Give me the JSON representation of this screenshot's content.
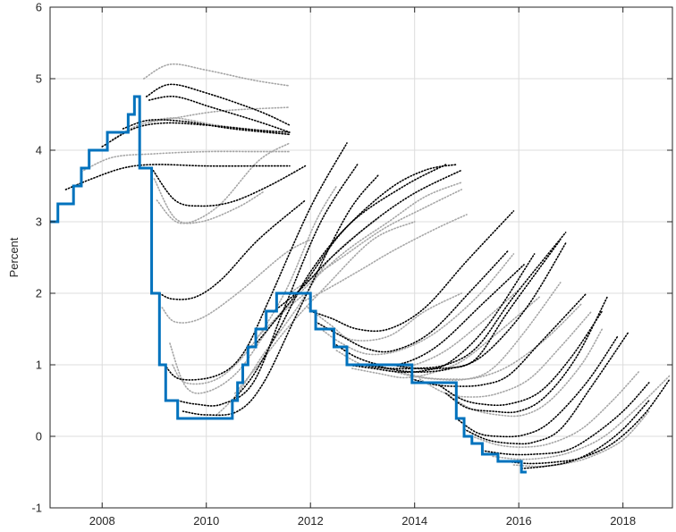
{
  "chart_data": {
    "type": "line",
    "title": "",
    "xlabel": "",
    "ylabel": "Percent",
    "xlim": [
      2007.0,
      2018.95
    ],
    "ylim": [
      -1,
      6
    ],
    "x_ticks": [
      2008,
      2010,
      2012,
      2014,
      2016,
      2018
    ],
    "x_tick_labels": [
      "2008",
      "2010",
      "2012",
      "2014",
      "2016",
      "2018"
    ],
    "y_ticks": [
      -1,
      0,
      1,
      2,
      3,
      4,
      5,
      6
    ],
    "y_tick_labels": [
      "-1",
      "0",
      "1",
      "2",
      "3",
      "4",
      "5",
      "6"
    ],
    "grid": true,
    "colors": {
      "policy": "#0072BD",
      "forecast_dark": "#000000",
      "forecast_light": "#a6a6a6",
      "grid": "#dcdcdc",
      "axis": "#262626"
    },
    "policy_rate": {
      "style": "step",
      "x": [
        2007.0,
        2007.15,
        2007.45,
        2007.6,
        2007.75,
        2007.9,
        2008.1,
        2008.3,
        2008.5,
        2008.62,
        2008.72,
        2008.85,
        2008.95,
        2009.1,
        2009.22,
        2009.33,
        2009.45,
        2010.5,
        2010.6,
        2010.7,
        2010.8,
        2010.95,
        2011.05,
        2011.15,
        2011.25,
        2011.35,
        2011.45,
        2011.55,
        2011.65,
        2011.8,
        2012.0,
        2012.1,
        2012.2,
        2012.45,
        2012.7,
        2012.9,
        2013.5,
        2013.95,
        2014.5,
        2014.8,
        2014.95,
        2015.1,
        2015.2,
        2015.3,
        2015.45,
        2015.6,
        2015.75,
        2016.05,
        2016.15
      ],
      "y": [
        3.0,
        3.25,
        3.5,
        3.75,
        4.0,
        4.0,
        4.25,
        4.25,
        4.5,
        4.75,
        3.75,
        3.75,
        2.0,
        1.0,
        0.5,
        0.5,
        0.25,
        0.5,
        0.75,
        1.0,
        1.25,
        1.5,
        1.5,
        1.75,
        1.75,
        2.0,
        2.0,
        2.0,
        2.0,
        2.0,
        1.75,
        1.5,
        1.5,
        1.25,
        1.0,
        1.0,
        1.0,
        0.75,
        0.75,
        0.25,
        0.0,
        -0.1,
        -0.1,
        -0.25,
        -0.25,
        -0.35,
        -0.35,
        -0.5,
        -0.5
      ]
    },
    "forecast_paths": [
      {
        "shade": "dark",
        "x": [
          2007.3,
          2007.8,
          2008.4,
          2009.0,
          2010.0,
          2011.0,
          2011.6
        ],
        "y": [
          3.45,
          3.6,
          3.75,
          3.8,
          3.78,
          3.78,
          3.78
        ]
      },
      {
        "shade": "light",
        "x": [
          2007.6,
          2008.2,
          2009.0,
          2010.0,
          2011.0,
          2011.6
        ],
        "y": [
          3.7,
          3.9,
          3.95,
          3.98,
          3.98,
          3.98
        ]
      },
      {
        "shade": "dark",
        "x": [
          2008.0,
          2008.6,
          2009.2,
          2010.0,
          2011.0,
          2011.6
        ],
        "y": [
          4.05,
          4.3,
          4.38,
          4.35,
          4.28,
          4.25
        ]
      },
      {
        "shade": "light",
        "x": [
          2008.2,
          2008.7,
          2009.4,
          2010.3,
          2011.6
        ],
        "y": [
          4.15,
          4.35,
          4.45,
          4.55,
          4.6
        ]
      },
      {
        "shade": "dark",
        "x": [
          2008.4,
          2008.9,
          2009.6,
          2010.5,
          2011.6
        ],
        "y": [
          4.3,
          4.42,
          4.4,
          4.3,
          4.22
        ]
      },
      {
        "shade": "light",
        "x": [
          2008.8,
          2009.3,
          2010.0,
          2010.9,
          2011.6
        ],
        "y": [
          5.0,
          5.2,
          5.12,
          4.98,
          4.9
        ]
      },
      {
        "shade": "dark",
        "x": [
          2008.85,
          2009.3,
          2010.0,
          2011.0,
          2011.6
        ],
        "y": [
          4.75,
          4.92,
          4.8,
          4.55,
          4.35
        ]
      },
      {
        "shade": "dark",
        "x": [
          2008.9,
          2009.4,
          2010.1,
          2011.0,
          2011.6
        ],
        "y": [
          4.7,
          4.75,
          4.6,
          4.4,
          4.25
        ]
      },
      {
        "shade": "light",
        "x": [
          2008.9,
          2009.4,
          2010.2,
          2011.0,
          2011.6
        ],
        "y": [
          4.4,
          4.45,
          4.35,
          4.28,
          4.22
        ]
      },
      {
        "shade": "dark",
        "x": [
          2008.95,
          2009.4,
          2009.9,
          2010.5,
          2011.2,
          2011.9
        ],
        "y": [
          3.75,
          3.3,
          3.22,
          3.28,
          3.5,
          3.78
        ]
      },
      {
        "shade": "light",
        "x": [
          2009.0,
          2009.4,
          2009.9,
          2010.6,
          2011.1
        ],
        "y": [
          3.6,
          3.05,
          3.0,
          3.2,
          3.42
        ]
      },
      {
        "shade": "light",
        "x": [
          2009.05,
          2009.5,
          2010.2,
          2011.0,
          2011.6
        ],
        "y": [
          3.3,
          2.98,
          3.2,
          3.85,
          4.1
        ]
      },
      {
        "shade": "dark",
        "x": [
          2009.1,
          2009.35,
          2009.8,
          2010.3,
          2011.0,
          2011.9
        ],
        "y": [
          2.0,
          1.92,
          1.95,
          2.2,
          2.75,
          3.3
        ]
      },
      {
        "shade": "light",
        "x": [
          2009.15,
          2009.4,
          2009.9,
          2010.6,
          2011.5,
          2012.0
        ],
        "y": [
          1.8,
          1.6,
          1.65,
          2.0,
          2.55,
          2.75
        ]
      },
      {
        "shade": "light",
        "x": [
          2009.3,
          2009.6,
          2010.0,
          2010.6,
          2011.3,
          2011.9
        ],
        "y": [
          1.3,
          0.7,
          0.62,
          0.9,
          1.6,
          2.0
        ]
      },
      {
        "shade": "dark",
        "x": [
          2009.2,
          2009.5,
          2010.2,
          2010.7,
          2011.2,
          2012.0,
          2012.7
        ],
        "y": [
          1.0,
          0.8,
          0.85,
          1.15,
          1.9,
          3.2,
          4.1
        ]
      },
      {
        "shade": "light",
        "x": [
          2009.35,
          2009.6,
          2010.2,
          2010.8,
          2011.5,
          2012.1,
          2012.5
        ],
        "y": [
          1.0,
          0.75,
          0.8,
          1.2,
          2.0,
          3.0,
          3.5
        ]
      },
      {
        "shade": "dark",
        "x": [
          2009.45,
          2009.8,
          2010.3,
          2010.9,
          2011.5,
          2012.2,
          2012.9
        ],
        "y": [
          0.5,
          0.45,
          0.45,
          0.75,
          1.8,
          3.0,
          3.8
        ]
      },
      {
        "shade": "dark",
        "x": [
          2009.55,
          2010.0,
          2010.6,
          2011.1,
          2011.8,
          2012.7,
          2013.3
        ],
        "y": [
          0.35,
          0.3,
          0.35,
          0.75,
          1.8,
          3.1,
          3.65
        ]
      },
      {
        "shade": "light",
        "x": [
          2010.2,
          2010.6,
          2011.1,
          2011.7,
          2012.4,
          2013.3
        ],
        "y": [
          0.3,
          0.6,
          1.15,
          1.75,
          2.5,
          3.05
        ]
      },
      {
        "shade": "dark",
        "x": [
          2010.5,
          2010.9,
          2011.4,
          2012.0,
          2012.8,
          2013.8,
          2014.6
        ],
        "y": [
          0.5,
          0.85,
          1.5,
          2.3,
          3.0,
          3.5,
          3.8
        ]
      },
      {
        "shade": "light",
        "x": [
          2010.55,
          2011.0,
          2011.6,
          2012.3,
          2013.2,
          2014.0
        ],
        "y": [
          0.6,
          1.0,
          1.55,
          2.1,
          2.75,
          3.0
        ]
      },
      {
        "shade": "dark",
        "x": [
          2010.9,
          2011.3,
          2011.9,
          2012.6,
          2013.5,
          2014.2,
          2014.8
        ],
        "y": [
          1.25,
          1.6,
          2.15,
          2.85,
          3.45,
          3.72,
          3.8
        ]
      },
      {
        "shade": "light",
        "x": [
          2011.0,
          2011.4,
          2012.0,
          2012.7,
          2013.5,
          2014.2,
          2014.9
        ],
        "y": [
          1.4,
          1.7,
          2.15,
          2.6,
          3.0,
          3.35,
          3.55
        ]
      },
      {
        "shade": "dark",
        "x": [
          2011.3,
          2011.8,
          2012.4,
          2013.2,
          2014.0,
          2014.9
        ],
        "y": [
          1.75,
          2.05,
          2.5,
          3.0,
          3.4,
          3.72
        ]
      },
      {
        "shade": "light",
        "x": [
          2011.6,
          2012.0,
          2012.6,
          2013.4,
          2014.2,
          2014.9
        ],
        "y": [
          2.0,
          2.2,
          2.5,
          2.9,
          3.2,
          3.45
        ]
      },
      {
        "shade": "light",
        "x": [
          2011.9,
          2012.3,
          2012.9,
          2013.6,
          2014.4,
          2015.0
        ],
        "y": [
          1.9,
          2.05,
          2.3,
          2.6,
          2.9,
          3.1
        ]
      },
      {
        "shade": "light",
        "x": [
          2011.95,
          2012.4,
          2012.8,
          2013.5,
          2014.2,
          2014.9
        ],
        "y": [
          1.8,
          1.55,
          1.35,
          1.4,
          1.75,
          2.0
        ]
      },
      {
        "shade": "dark",
        "x": [
          2012.0,
          2012.4,
          2012.9,
          2013.5,
          2014.2,
          2015.0,
          2015.9
        ],
        "y": [
          1.75,
          1.65,
          1.5,
          1.5,
          1.8,
          2.45,
          3.15
        ]
      },
      {
        "shade": "dark",
        "x": [
          2012.1,
          2012.6,
          2013.1,
          2013.6,
          2014.3,
          2015.1,
          2015.8
        ],
        "y": [
          1.6,
          1.4,
          1.22,
          1.2,
          1.45,
          2.05,
          2.6
        ]
      },
      {
        "shade": "light",
        "x": [
          2012.2,
          2012.6,
          2013.1,
          2013.7,
          2014.4,
          2015.2,
          2015.9
        ],
        "y": [
          1.5,
          1.3,
          1.15,
          1.2,
          1.45,
          1.95,
          2.55
        ]
      },
      {
        "shade": "dark",
        "x": [
          2012.45,
          2012.9,
          2013.4,
          2013.9,
          2014.5,
          2015.3,
          2016.1
        ],
        "y": [
          1.3,
          1.1,
          1.0,
          1.05,
          1.3,
          1.85,
          2.4
        ]
      },
      {
        "shade": "light",
        "x": [
          2012.5,
          2013.0,
          2013.5,
          2014.0,
          2014.6,
          2015.3,
          2016.0
        ],
        "y": [
          1.2,
          1.0,
          0.95,
          1.0,
          1.2,
          1.6,
          2.05
        ]
      },
      {
        "shade": "dark",
        "x": [
          2012.7,
          2013.2,
          2013.7,
          2014.2,
          2014.7,
          2015.4,
          2016.3
        ],
        "y": [
          1.0,
          0.95,
          0.9,
          0.92,
          1.05,
          1.55,
          2.55
        ]
      },
      {
        "shade": "light",
        "x": [
          2012.8,
          2013.3,
          2013.8,
          2014.3,
          2014.9,
          2015.6,
          2016.4
        ],
        "y": [
          0.95,
          0.88,
          0.82,
          0.88,
          1.05,
          1.45,
          1.95
        ]
      },
      {
        "shade": "dark",
        "x": [
          2012.95,
          2013.5,
          2014.0,
          2014.6,
          2015.2,
          2015.9,
          2016.9
        ],
        "y": [
          1.0,
          0.95,
          0.95,
          1.0,
          1.25,
          1.95,
          2.85
        ]
      },
      {
        "shade": "dark",
        "x": [
          2013.2,
          2013.7,
          2014.2,
          2014.7,
          2015.2,
          2015.8,
          2016.8
        ],
        "y": [
          1.0,
          0.92,
          0.9,
          0.95,
          1.1,
          1.75,
          2.75
        ]
      },
      {
        "shade": "light",
        "x": [
          2013.4,
          2013.9,
          2014.4,
          2015.0,
          2015.5,
          2016.1,
          2016.8
        ],
        "y": [
          0.95,
          0.85,
          0.8,
          0.8,
          0.95,
          1.45,
          2.15
        ]
      },
      {
        "shade": "dark",
        "x": [
          2013.55,
          2014.0,
          2014.5,
          2015.0,
          2015.5,
          2016.2,
          2016.9
        ],
        "y": [
          1.0,
          0.95,
          0.95,
          1.0,
          1.25,
          1.85,
          2.7
        ]
      },
      {
        "shade": "light",
        "x": [
          2013.7,
          2014.2,
          2014.7,
          2015.2,
          2015.8,
          2016.5,
          2017.2
        ],
        "y": [
          0.9,
          0.82,
          0.8,
          0.82,
          0.98,
          1.35,
          1.85
        ]
      },
      {
        "shade": "dark",
        "x": [
          2013.95,
          2014.4,
          2014.8,
          2015.3,
          2015.8,
          2016.4,
          2017.3
        ],
        "y": [
          0.8,
          0.72,
          0.7,
          0.72,
          0.85,
          1.3,
          2.0
        ]
      },
      {
        "shade": "light",
        "x": [
          2014.1,
          2014.6,
          2015.1,
          2015.6,
          2016.2,
          2016.8,
          2017.4
        ],
        "y": [
          0.8,
          0.6,
          0.55,
          0.6,
          0.8,
          1.25,
          1.75
        ]
      },
      {
        "shade": "dark",
        "x": [
          2014.5,
          2014.9,
          2015.3,
          2015.8,
          2016.4,
          2017.0,
          2017.6
        ],
        "y": [
          0.7,
          0.52,
          0.45,
          0.45,
          0.62,
          1.1,
          1.75
        ]
      },
      {
        "shade": "dark",
        "x": [
          2014.6,
          2015.0,
          2015.5,
          2016.0,
          2016.5,
          2017.1,
          2017.7
        ],
        "y": [
          0.6,
          0.4,
          0.35,
          0.35,
          0.55,
          1.1,
          1.95
        ]
      },
      {
        "shade": "light",
        "x": [
          2014.7,
          2015.1,
          2015.6,
          2016.1,
          2016.6,
          2017.2,
          2017.6
        ],
        "y": [
          0.55,
          0.38,
          0.3,
          0.3,
          0.5,
          1.0,
          1.5
        ]
      },
      {
        "shade": "dark",
        "x": [
          2014.8,
          2015.2,
          2015.6,
          2016.1,
          2016.6,
          2017.3,
          2017.9
        ],
        "y": [
          0.25,
          0.05,
          0.0,
          0.02,
          0.2,
          0.75,
          1.4
        ]
      },
      {
        "shade": "dark",
        "x": [
          2014.95,
          2015.4,
          2015.9,
          2016.3,
          2016.8,
          2017.4,
          2018.1
        ],
        "y": [
          0.1,
          -0.05,
          -0.1,
          -0.08,
          0.1,
          0.7,
          1.45
        ]
      },
      {
        "shade": "light",
        "x": [
          2015.1,
          2015.6,
          2016.1,
          2016.6,
          2017.2,
          2017.8,
          2018.3
        ],
        "y": [
          0.0,
          -0.12,
          -0.15,
          -0.1,
          0.1,
          0.5,
          0.9
        ]
      },
      {
        "shade": "dark",
        "x": [
          2015.3,
          2015.8,
          2016.3,
          2016.9,
          2017.4,
          2018.0,
          2018.5
        ],
        "y": [
          -0.2,
          -0.25,
          -0.25,
          -0.2,
          0.0,
          0.35,
          0.75
        ]
      },
      {
        "shade": "light",
        "x": [
          2015.5,
          2016.0,
          2016.5,
          2017.0,
          2017.6,
          2018.2,
          2018.9
        ],
        "y": [
          -0.28,
          -0.32,
          -0.3,
          -0.22,
          -0.02,
          0.35,
          0.85
        ]
      },
      {
        "shade": "dark",
        "x": [
          2015.75,
          2016.2,
          2016.7,
          2017.2,
          2017.8,
          2018.4,
          2018.9
        ],
        "y": [
          -0.35,
          -0.38,
          -0.36,
          -0.3,
          -0.1,
          0.3,
          0.8
        ]
      },
      {
        "shade": "light",
        "x": [
          2015.9,
          2016.4,
          2016.9,
          2017.4,
          2018.0,
          2018.5
        ],
        "y": [
          -0.4,
          -0.42,
          -0.38,
          -0.28,
          -0.05,
          0.35
        ]
      },
      {
        "shade": "dark",
        "x": [
          2016.05,
          2016.5,
          2017.0,
          2017.5,
          2018.0,
          2018.5
        ],
        "y": [
          -0.45,
          -0.42,
          -0.35,
          -0.18,
          0.1,
          0.5
        ]
      }
    ]
  }
}
